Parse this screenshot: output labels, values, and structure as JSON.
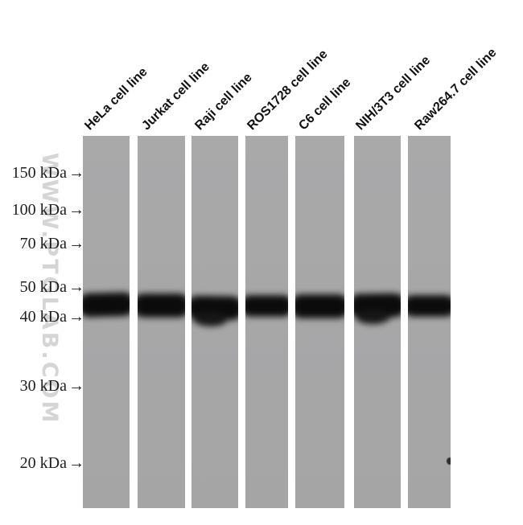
{
  "figure_type": "western blot",
  "watermark": {
    "text": "WWW.PTGLAB.COM"
  },
  "markers": [
    {
      "label": "150 kDa",
      "arrow": "→"
    },
    {
      "label": "100 kDa",
      "arrow": "→"
    },
    {
      "label": "70 kDa",
      "arrow": "→"
    },
    {
      "label": "50 kDa",
      "arrow": "→"
    },
    {
      "label": "40 kDa",
      "arrow": "→"
    },
    {
      "label": "30 kDa",
      "arrow": "→"
    },
    {
      "label": "20 kDa",
      "arrow": "→"
    }
  ],
  "lanes": [
    {
      "label": "HeLa cell line",
      "band": "present"
    },
    {
      "label": "Jurkat cell line",
      "band": "present"
    },
    {
      "label": "Raji cell line",
      "band": "present"
    },
    {
      "label": "ROS1728 cell line",
      "band": "present"
    },
    {
      "label": "C6 cell line",
      "band": "present"
    },
    {
      "label": "NIH/3T3 cell line",
      "band": "present"
    },
    {
      "label": "Raw264.7 cell line",
      "band": "present"
    }
  ],
  "observed_band": "single dark band between the 40 kDa and 50 kDa markers in all 7 lanes",
  "colors": {
    "background": "#ffffff",
    "gel_gray": "#a7a7a8",
    "band_dark": "#131313",
    "watermark_gray": "#d5d5d5",
    "text_black": "#1e1e1e"
  }
}
